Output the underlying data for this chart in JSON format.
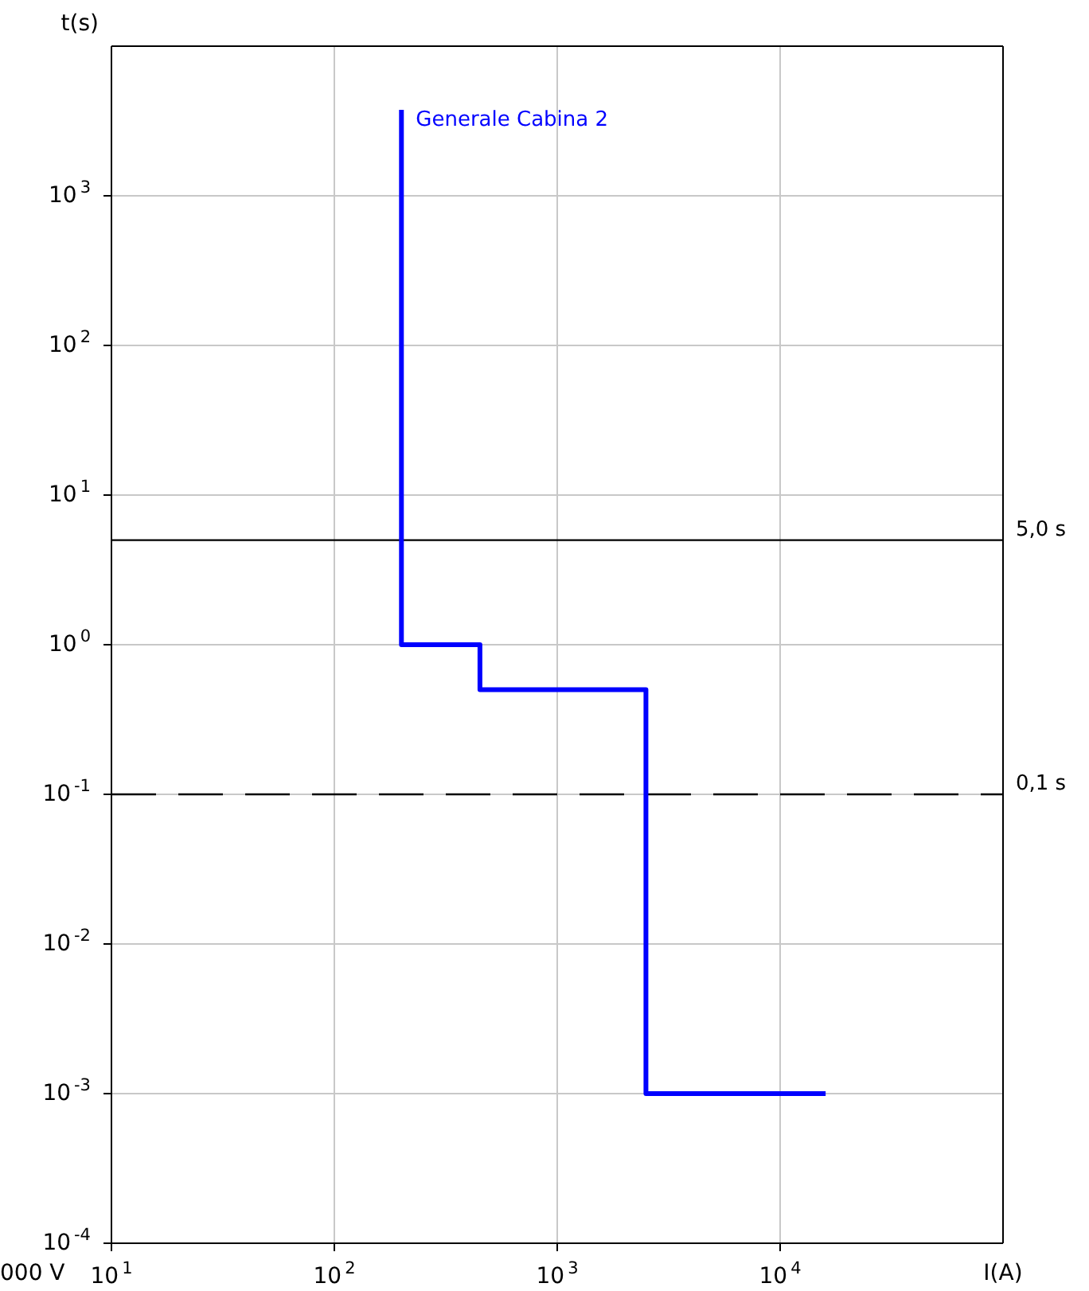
{
  "chart_data": {
    "type": "step",
    "xlabel": "I(A)",
    "ylabel": "t(s)",
    "log": "xy",
    "grid": true,
    "legend": false,
    "marker": "none",
    "line_style": "solid",
    "xlim": [
      10,
      100000
    ],
    "ylim": [
      0.0001,
      10000
    ],
    "xticks": [
      {
        "value": 10,
        "label": "10$^{1}$"
      },
      {
        "value": 100,
        "label": "10$^{2}$"
      },
      {
        "value": 1000,
        "label": "10$^{3}$"
      },
      {
        "value": 10000,
        "label": "10$^{4}$"
      }
    ],
    "yticks": [
      {
        "value": 0.0001,
        "label": "10$^{-4}$"
      },
      {
        "value": 0.001,
        "label": "10$^{-3}$"
      },
      {
        "value": 0.01,
        "label": "10$^{-2}$"
      },
      {
        "value": 0.1,
        "label": "10$^{-1}$"
      },
      {
        "value": 1,
        "label": "10$^{0}$"
      },
      {
        "value": 10,
        "label": "10$^{1}$"
      },
      {
        "value": 100,
        "label": "10$^{2}$"
      },
      {
        "value": 1000,
        "label": "10$^{3}$"
      }
    ],
    "series": [
      {
        "name": "Generale Cabina 2",
        "color": "#0000ff",
        "x": [
          200,
          200,
          450,
          2500,
          16000
        ],
        "values": [
          3750,
          1,
          0.5,
          0.001,
          0.001
        ]
      }
    ],
    "ref_lines": [
      {
        "axis": "y",
        "value": 5,
        "label": "5,0 s",
        "color": "#000000",
        "line_style": "solid"
      },
      {
        "axis": "y",
        "value": 0.1,
        "label": "0,1 s",
        "color": "#000000",
        "line_style": "dashed"
      }
    ],
    "annotations": [
      "000 V"
    ]
  }
}
